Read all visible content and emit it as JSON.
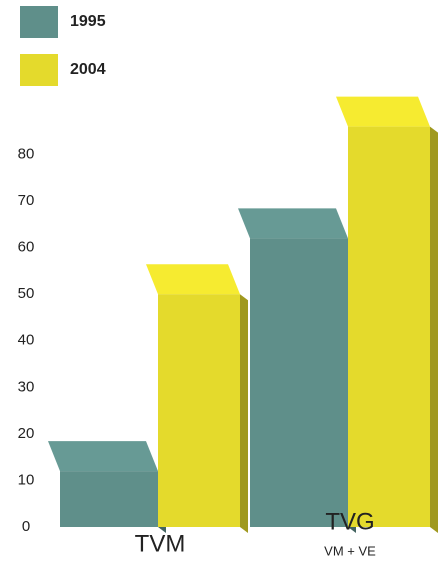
{
  "chart_data": {
    "type": "bar3d",
    "categories": [
      "TVM",
      "TVG"
    ],
    "category_sublabels": [
      null,
      "VM + VE"
    ],
    "series": [
      {
        "name": "1995",
        "color": "#5f8f8a",
        "values": [
          12,
          62
        ]
      },
      {
        "name": "2004",
        "color": "#e4da2c",
        "values": [
          50,
          86
        ]
      }
    ],
    "ylim": [
      0,
      90
    ],
    "yticks": [
      0,
      10,
      20,
      30,
      40,
      50,
      60,
      70,
      80
    ],
    "legend": "top-left"
  }
}
